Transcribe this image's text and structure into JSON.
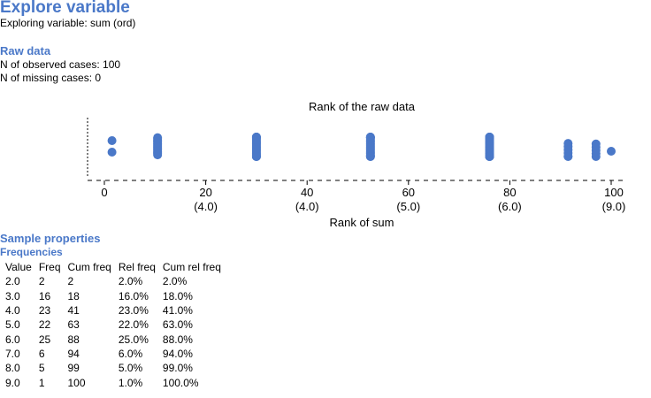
{
  "header": {
    "title": "Explore variable",
    "subtitle": "Exploring variable: sum (ord)"
  },
  "raw_data": {
    "heading": "Raw data",
    "observed": "N of observed cases: 100",
    "missing": "N of missing cases: 0"
  },
  "chart_data": {
    "type": "scatter",
    "title": "Rank of the raw data",
    "xlabel": "Rank of sum",
    "xlim": [
      0,
      100
    ],
    "ticks": [
      {
        "value": 0,
        "label": "0",
        "sub": ""
      },
      {
        "value": 20,
        "label": "20",
        "sub": "(4.0)"
      },
      {
        "value": 40,
        "label": "40",
        "sub": "(4.0)"
      },
      {
        "value": 60,
        "label": "60",
        "sub": "(5.0)"
      },
      {
        "value": 80,
        "label": "80",
        "sub": "(6.0)"
      },
      {
        "value": 100,
        "label": "100",
        "sub": "(9.0)"
      }
    ],
    "groups": [
      {
        "value": 2.0,
        "rank": 1.5,
        "count": 2
      },
      {
        "value": 3.0,
        "rank": 10.5,
        "count": 16
      },
      {
        "value": 4.0,
        "rank": 30.0,
        "count": 23
      },
      {
        "value": 5.0,
        "rank": 52.5,
        "count": 22
      },
      {
        "value": 6.0,
        "rank": 76.0,
        "count": 25
      },
      {
        "value": 7.0,
        "rank": 91.5,
        "count": 6
      },
      {
        "value": 8.0,
        "rank": 97.0,
        "count": 5
      },
      {
        "value": 9.0,
        "rank": 100.0,
        "count": 1
      }
    ],
    "color": "#4a78c8"
  },
  "sample": {
    "heading": "Sample properties",
    "subheading": "Frequencies",
    "columns": [
      "Value",
      "Freq",
      "Cum freq",
      "Rel freq",
      "Cum rel freq"
    ],
    "rows": [
      [
        "2.0",
        "2",
        "2",
        "2.0%",
        "2.0%"
      ],
      [
        "3.0",
        "16",
        "18",
        "16.0%",
        "18.0%"
      ],
      [
        "4.0",
        "23",
        "41",
        "23.0%",
        "41.0%"
      ],
      [
        "5.0",
        "22",
        "63",
        "22.0%",
        "63.0%"
      ],
      [
        "6.0",
        "25",
        "88",
        "25.0%",
        "88.0%"
      ],
      [
        "7.0",
        "6",
        "94",
        "6.0%",
        "94.0%"
      ],
      [
        "8.0",
        "5",
        "99",
        "5.0%",
        "99.0%"
      ],
      [
        "9.0",
        "1",
        "100",
        "1.0%",
        "100.0%"
      ]
    ]
  }
}
